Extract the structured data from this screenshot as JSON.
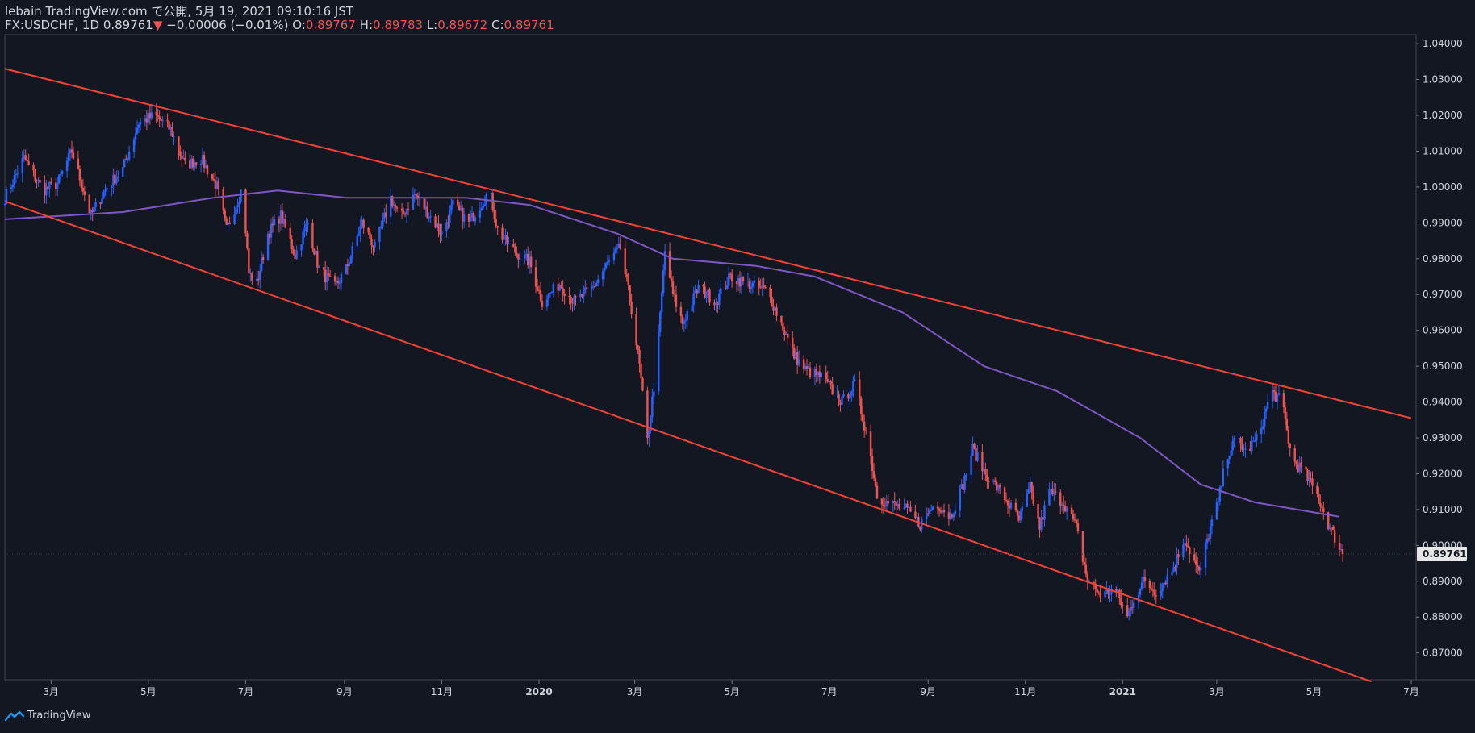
{
  "header": {
    "line1": "lebain TradingView.com で公開, 5月 19, 2021 09:10:16 JST",
    "symbol": "FX:USDCHF, 1D",
    "last": "0.89761",
    "arrow": "▼",
    "change": "−0.00006 (−0.01%)",
    "o_label": "O:",
    "o_val": "0.89767",
    "h_label": "H:",
    "h_val": "0.89783",
    "l_label": "L:",
    "l_val": "0.89672",
    "c_label": "C:",
    "c_val": "0.89761"
  },
  "brand": {
    "name": "TradingView",
    "icon": "tradingview-logo-icon"
  },
  "colors": {
    "up": "#2962ff",
    "down": "#ef5350",
    "ma": "#7e57c2",
    "trend": "#f44336",
    "bg": "#131722",
    "price_tag": "#e6e6e6"
  },
  "chart_data": {
    "type": "candlestick",
    "symbol": "FX:USDCHF",
    "interval": "1D",
    "x_labels": [
      "3月",
      "5月",
      "7月",
      "9月",
      "11月",
      "2020",
      "3月",
      "5月",
      "7月",
      "9月",
      "11月",
      "2021",
      "3月",
      "5月",
      "7月"
    ],
    "y_ticks": [
      "1.04000",
      "1.03000",
      "1.02000",
      "1.01000",
      "1.00000",
      "0.99000",
      "0.98000",
      "0.97000",
      "0.96000",
      "0.95000",
      "0.94000",
      "0.93000",
      "0.92000",
      "0.91000",
      "0.90000",
      "0.89000",
      "0.88000",
      "0.87000"
    ],
    "ylim": [
      0.8625,
      1.0425
    ],
    "last_price": "0.89761",
    "price_path": [
      {
        "x": "2019-01-31",
        "y": 0.997
      },
      {
        "x": "2019-02-12",
        "y": 1.008
      },
      {
        "x": "2019-02-24",
        "y": 0.999
      },
      {
        "x": "2019-03-05",
        "y": 1.001
      },
      {
        "x": "2019-03-14",
        "y": 1.01
      },
      {
        "x": "2019-03-26",
        "y": 0.992
      },
      {
        "x": "2019-04-05",
        "y": 1.0
      },
      {
        "x": "2019-04-15",
        "y": 1.005
      },
      {
        "x": "2019-04-25",
        "y": 1.018
      },
      {
        "x": "2019-05-05",
        "y": 1.02
      },
      {
        "x": "2019-05-15",
        "y": 1.016
      },
      {
        "x": "2019-05-24",
        "y": 1.006
      },
      {
        "x": "2019-06-03",
        "y": 1.008
      },
      {
        "x": "2019-06-13",
        "y": 1.0
      },
      {
        "x": "2019-06-19",
        "y": 0.988
      },
      {
        "x": "2019-06-29",
        "y": 1.0
      },
      {
        "x": "2019-07-03",
        "y": 0.976
      },
      {
        "x": "2019-07-08",
        "y": 0.973
      },
      {
        "x": "2019-07-15",
        "y": 0.987
      },
      {
        "x": "2019-07-23",
        "y": 0.992
      },
      {
        "x": "2019-08-01",
        "y": 0.981
      },
      {
        "x": "2019-08-09",
        "y": 0.99
      },
      {
        "x": "2019-08-16",
        "y": 0.977
      },
      {
        "x": "2019-08-26",
        "y": 0.972
      },
      {
        "x": "2019-09-02",
        "y": 0.977
      },
      {
        "x": "2019-09-12",
        "y": 0.99
      },
      {
        "x": "2019-09-20",
        "y": 0.983
      },
      {
        "x": "2019-09-30",
        "y": 0.997
      },
      {
        "x": "2019-10-06",
        "y": 0.991
      },
      {
        "x": "2019-10-15",
        "y": 0.998
      },
      {
        "x": "2019-10-23",
        "y": 0.993
      },
      {
        "x": "2019-11-01",
        "y": 0.987
      },
      {
        "x": "2019-11-08",
        "y": 0.995
      },
      {
        "x": "2019-11-18",
        "y": 0.99
      },
      {
        "x": "2019-12-01",
        "y": 0.999
      },
      {
        "x": "2019-12-06",
        "y": 0.988
      },
      {
        "x": "2019-12-14",
        "y": 0.983
      },
      {
        "x": "2019-12-26",
        "y": 0.979
      },
      {
        "x": "2020-01-03",
        "y": 0.968
      },
      {
        "x": "2020-01-14",
        "y": 0.973
      },
      {
        "x": "2020-01-23",
        "y": 0.968
      },
      {
        "x": "2020-02-04",
        "y": 0.972
      },
      {
        "x": "2020-02-12",
        "y": 0.978
      },
      {
        "x": "2020-02-21",
        "y": 0.983
      },
      {
        "x": "2020-02-28",
        "y": 0.966
      },
      {
        "x": "2020-03-04",
        "y": 0.95
      },
      {
        "x": "2020-03-09",
        "y": 0.929
      },
      {
        "x": "2020-03-15",
        "y": 0.952
      },
      {
        "x": "2020-03-20",
        "y": 0.982
      },
      {
        "x": "2020-03-25",
        "y": 0.97
      },
      {
        "x": "2020-03-31",
        "y": 0.962
      },
      {
        "x": "2020-04-10",
        "y": 0.972
      },
      {
        "x": "2020-04-21",
        "y": 0.968
      },
      {
        "x": "2020-04-30",
        "y": 0.975
      },
      {
        "x": "2020-05-11",
        "y": 0.973
      },
      {
        "x": "2020-05-23",
        "y": 0.971
      },
      {
        "x": "2020-06-01",
        "y": 0.962
      },
      {
        "x": "2020-06-09",
        "y": 0.953
      },
      {
        "x": "2020-06-16",
        "y": 0.949
      },
      {
        "x": "2020-06-26",
        "y": 0.947
      },
      {
        "x": "2020-07-09",
        "y": 0.94
      },
      {
        "x": "2020-07-17",
        "y": 0.945
      },
      {
        "x": "2020-07-25",
        "y": 0.93
      },
      {
        "x": "2020-07-31",
        "y": 0.914
      },
      {
        "x": "2020-08-06",
        "y": 0.912
      },
      {
        "x": "2020-08-18",
        "y": 0.91
      },
      {
        "x": "2020-08-27",
        "y": 0.906
      },
      {
        "x": "2020-09-06",
        "y": 0.912
      },
      {
        "x": "2020-09-15",
        "y": 0.908
      },
      {
        "x": "2020-09-23",
        "y": 0.917
      },
      {
        "x": "2020-09-29",
        "y": 0.927
      },
      {
        "x": "2020-10-07",
        "y": 0.92
      },
      {
        "x": "2020-10-18",
        "y": 0.914
      },
      {
        "x": "2020-10-28",
        "y": 0.907
      },
      {
        "x": "2020-11-04",
        "y": 0.916
      },
      {
        "x": "2020-11-10",
        "y": 0.905
      },
      {
        "x": "2020-11-16",
        "y": 0.915
      },
      {
        "x": "2020-11-25",
        "y": 0.912
      },
      {
        "x": "2020-12-03",
        "y": 0.905
      },
      {
        "x": "2020-12-10",
        "y": 0.89
      },
      {
        "x": "2020-12-19",
        "y": 0.886
      },
      {
        "x": "2020-12-27",
        "y": 0.888
      },
      {
        "x": "2021-01-04",
        "y": 0.88
      },
      {
        "x": "2021-01-08",
        "y": 0.885
      },
      {
        "x": "2021-01-14",
        "y": 0.89
      },
      {
        "x": "2021-01-22",
        "y": 0.887
      },
      {
        "x": "2021-02-01",
        "y": 0.893
      },
      {
        "x": "2021-02-09",
        "y": 0.902
      },
      {
        "x": "2021-02-18",
        "y": 0.892
      },
      {
        "x": "2021-02-25",
        "y": 0.905
      },
      {
        "x": "2021-03-02",
        "y": 0.912
      },
      {
        "x": "2021-03-07",
        "y": 0.925
      },
      {
        "x": "2021-03-14",
        "y": 0.93
      },
      {
        "x": "2021-03-19",
        "y": 0.926
      },
      {
        "x": "2021-03-27",
        "y": 0.93
      },
      {
        "x": "2021-04-04",
        "y": 0.943
      },
      {
        "x": "2021-04-11",
        "y": 0.94
      },
      {
        "x": "2021-04-17",
        "y": 0.924
      },
      {
        "x": "2021-04-24",
        "y": 0.921
      },
      {
        "x": "2021-05-03",
        "y": 0.914
      },
      {
        "x": "2021-05-11",
        "y": 0.905
      },
      {
        "x": "2021-05-19",
        "y": 0.8976
      }
    ],
    "moving_average": [
      {
        "x": "2019-01-31",
        "y": 0.991
      },
      {
        "x": "2019-04-15",
        "y": 0.993
      },
      {
        "x": "2019-06-11",
        "y": 0.997
      },
      {
        "x": "2019-07-21",
        "y": 0.999
      },
      {
        "x": "2019-09-02",
        "y": 0.997
      },
      {
        "x": "2019-11-16",
        "y": 0.997
      },
      {
        "x": "2019-12-26",
        "y": 0.995
      },
      {
        "x": "2020-02-19",
        "y": 0.987
      },
      {
        "x": "2020-03-25",
        "y": 0.98
      },
      {
        "x": "2020-05-16",
        "y": 0.978
      },
      {
        "x": "2020-06-22",
        "y": 0.975
      },
      {
        "x": "2020-08-16",
        "y": 0.965
      },
      {
        "x": "2020-10-06",
        "y": 0.95
      },
      {
        "x": "2020-11-21",
        "y": 0.943
      },
      {
        "x": "2021-01-12",
        "y": 0.93
      },
      {
        "x": "2021-02-19",
        "y": 0.917
      },
      {
        "x": "2021-03-25",
        "y": 0.912
      },
      {
        "x": "2021-05-17",
        "y": 0.908
      }
    ],
    "trendlines": [
      {
        "from": {
          "x": "2019-01-31",
          "y": 1.033
        },
        "to": {
          "x": "2021-07-01",
          "y": 0.9355
        }
      },
      {
        "from": {
          "x": "2019-01-31",
          "y": 0.996
        },
        "to": {
          "x": "2021-06-06",
          "y": 0.862
        }
      }
    ]
  }
}
